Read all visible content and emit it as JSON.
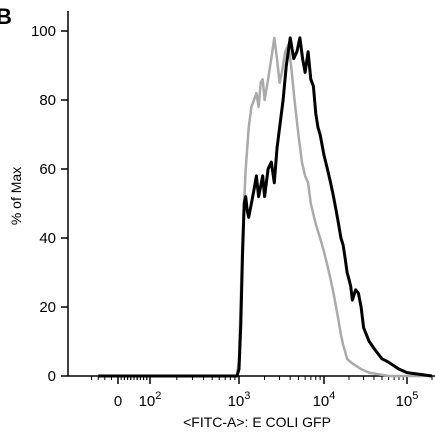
{
  "chart_data": {
    "type": "line",
    "panel_label": "B",
    "xlabel": "<FITC-A>: E COLI GFP",
    "ylabel": "% of Max",
    "x_scale": "biexponential",
    "xlim": [
      -500,
      200000
    ],
    "ylim": [
      0,
      100
    ],
    "grid": false,
    "y_ticks": [
      {
        "value": 0,
        "label": "0"
      },
      {
        "value": 20,
        "label": "20"
      },
      {
        "value": 40,
        "label": "40"
      },
      {
        "value": 60,
        "label": "60"
      },
      {
        "value": 80,
        "label": "80"
      },
      {
        "value": 100,
        "label": "100"
      }
    ],
    "x_ticks": [
      {
        "value": 0,
        "base": "0",
        "exp": ""
      },
      {
        "value": 100,
        "base": "10",
        "exp": "2"
      },
      {
        "value": 1000,
        "base": "10",
        "exp": "3"
      },
      {
        "value": 10000,
        "base": "10",
        "exp": "4"
      },
      {
        "value": 100000,
        "base": "10",
        "exp": "5"
      }
    ],
    "series": [
      {
        "color": "#aaaaaa",
        "x": [
          -300,
          800,
          900,
          950,
          1000,
          1100,
          1200,
          1300,
          1400,
          1500,
          1600,
          1700,
          1800,
          1900,
          2000,
          2200,
          2400,
          2600,
          2800,
          3000,
          3200,
          3500,
          3800,
          4100,
          4500,
          5000,
          5500,
          6000,
          6500,
          7000,
          8000,
          9000,
          10000,
          11000,
          12000,
          13000,
          14000,
          15000,
          16000,
          17000,
          18000,
          19000,
          21000,
          24000,
          28000,
          35000,
          60000,
          200000
        ],
        "y": [
          0,
          0,
          0,
          0,
          5,
          40,
          60,
          72,
          78,
          80,
          82,
          78,
          85,
          86,
          80,
          86,
          92,
          98,
          92,
          85,
          88,
          94,
          96,
          90,
          80,
          70,
          62,
          58,
          56,
          50,
          44,
          40,
          36,
          32,
          28,
          24,
          20,
          16,
          12,
          9,
          7,
          5,
          4,
          3,
          2,
          1,
          0,
          0
        ]
      },
      {
        "color": "#000000",
        "x": [
          -300,
          850,
          950,
          1000,
          1050,
          1100,
          1150,
          1200,
          1250,
          1300,
          1400,
          1500,
          1600,
          1700,
          1800,
          1900,
          2000,
          2200,
          2400,
          2600,
          2800,
          3000,
          3300,
          3600,
          4000,
          4400,
          4800,
          5200,
          5600,
          6000,
          6500,
          7000,
          7500,
          8000,
          8500,
          9000,
          10000,
          11000,
          12000,
          13000,
          14000,
          15000,
          16000,
          17000,
          18000,
          19000,
          20000,
          21000,
          22000,
          24000,
          26000,
          28000,
          30000,
          35000,
          40000,
          50000,
          60000,
          80000,
          100000,
          200000
        ],
        "y": [
          0,
          0,
          0,
          2,
          15,
          35,
          50,
          52,
          48,
          46,
          50,
          54,
          58,
          52,
          55,
          58,
          52,
          60,
          62,
          56,
          66,
          72,
          80,
          90,
          98,
          92,
          94,
          98,
          92,
          88,
          94,
          86,
          84,
          76,
          72,
          70,
          64,
          60,
          56,
          52,
          48,
          44,
          40,
          38,
          34,
          30,
          28,
          26,
          22,
          25,
          24,
          20,
          14,
          10,
          8,
          5,
          4,
          2,
          1,
          0
        ]
      }
    ]
  }
}
